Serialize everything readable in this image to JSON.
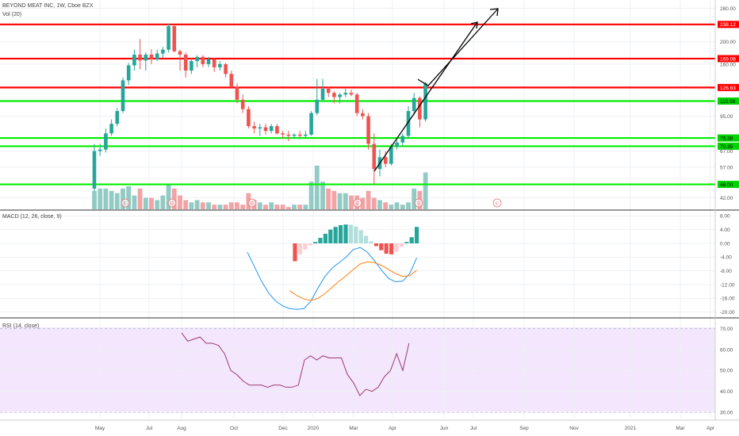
{
  "header": {
    "symbol_line": "BEYOND MEAT INC, 1W, Cboe BZX",
    "volume_label": "Vol (20)"
  },
  "colors": {
    "up": "#26a69a",
    "down": "#ef5350",
    "up_volume": "#92cbc4",
    "down_volume": "#f1a3a5",
    "resistance": "#ff0000",
    "support": "#00ee00",
    "macd_line": "#2196f3",
    "signal_line": "#ff7f0e",
    "rsi_line": "#9c3a74",
    "rsi_band": "#f3e6fd",
    "axis_text": "#555555"
  },
  "chart_data": [
    {
      "type": "candlestick",
      "title": "BEYOND MEAT INC, 1W, Cboe BZX",
      "x_ticks": [
        "May",
        "Jul",
        "Aug",
        "Oct",
        "Dec",
        "2020",
        "Mar",
        "Apr",
        "Jun",
        "Jul",
        "Sep",
        "Nov",
        "2021",
        "Mar",
        "Apr"
      ],
      "y_ticks": [
        280.0,
        238.12,
        200.0,
        169.08,
        160.0,
        126.63,
        110.56,
        95.0,
        76.38,
        70.35,
        67.0,
        57.0,
        48.0,
        42.0
      ],
      "y_scale": "log",
      "ylim": [
        38,
        290
      ],
      "candles": [
        {
          "o": 46,
          "h": 72,
          "l": 45,
          "c": 67
        },
        {
          "o": 67,
          "h": 72,
          "l": 64,
          "c": 68
        },
        {
          "o": 68,
          "h": 84,
          "l": 66,
          "c": 80
        },
        {
          "o": 80,
          "h": 92,
          "l": 78,
          "c": 88
        },
        {
          "o": 88,
          "h": 103,
          "l": 86,
          "c": 100
        },
        {
          "o": 100,
          "h": 140,
          "l": 98,
          "c": 136
        },
        {
          "o": 136,
          "h": 162,
          "l": 130,
          "c": 158
        },
        {
          "o": 158,
          "h": 185,
          "l": 150,
          "c": 176
        },
        {
          "o": 176,
          "h": 206,
          "l": 152,
          "c": 166
        },
        {
          "o": 166,
          "h": 180,
          "l": 150,
          "c": 176
        },
        {
          "o": 176,
          "h": 186,
          "l": 160,
          "c": 168
        },
        {
          "o": 168,
          "h": 185,
          "l": 165,
          "c": 178
        },
        {
          "o": 178,
          "h": 190,
          "l": 170,
          "c": 185
        },
        {
          "o": 185,
          "h": 240,
          "l": 180,
          "c": 234
        },
        {
          "o": 234,
          "h": 238,
          "l": 180,
          "c": 182
        },
        {
          "o": 182,
          "h": 185,
          "l": 150,
          "c": 176
        },
        {
          "o": 176,
          "h": 180,
          "l": 140,
          "c": 150
        },
        {
          "o": 150,
          "h": 170,
          "l": 145,
          "c": 165
        },
        {
          "o": 165,
          "h": 175,
          "l": 155,
          "c": 172
        },
        {
          "o": 172,
          "h": 175,
          "l": 155,
          "c": 160
        },
        {
          "o": 160,
          "h": 172,
          "l": 155,
          "c": 168
        },
        {
          "o": 168,
          "h": 170,
          "l": 148,
          "c": 155
        },
        {
          "o": 155,
          "h": 165,
          "l": 150,
          "c": 160
        },
        {
          "o": 160,
          "h": 162,
          "l": 140,
          "c": 145
        },
        {
          "o": 145,
          "h": 150,
          "l": 125,
          "c": 128
        },
        {
          "o": 128,
          "h": 132,
          "l": 108,
          "c": 112
        },
        {
          "o": 112,
          "h": 118,
          "l": 98,
          "c": 102
        },
        {
          "o": 102,
          "h": 105,
          "l": 84,
          "c": 86
        },
        {
          "o": 86,
          "h": 90,
          "l": 80,
          "c": 84
        },
        {
          "o": 84,
          "h": 88,
          "l": 78,
          "c": 85
        },
        {
          "o": 85,
          "h": 88,
          "l": 79,
          "c": 82
        },
        {
          "o": 82,
          "h": 88,
          "l": 80,
          "c": 86
        },
        {
          "o": 86,
          "h": 88,
          "l": 79,
          "c": 80
        },
        {
          "o": 80,
          "h": 82,
          "l": 76,
          "c": 79
        },
        {
          "o": 79,
          "h": 82,
          "l": 74,
          "c": 78
        },
        {
          "o": 78,
          "h": 80,
          "l": 76,
          "c": 79
        },
        {
          "o": 79,
          "h": 82,
          "l": 77,
          "c": 78
        },
        {
          "o": 78,
          "h": 82,
          "l": 77,
          "c": 79
        },
        {
          "o": 79,
          "h": 100,
          "l": 78,
          "c": 98
        },
        {
          "o": 98,
          "h": 138,
          "l": 96,
          "c": 112
        },
        {
          "o": 112,
          "h": 138,
          "l": 110,
          "c": 125
        },
        {
          "o": 125,
          "h": 128,
          "l": 115,
          "c": 120
        },
        {
          "o": 120,
          "h": 122,
          "l": 108,
          "c": 115
        },
        {
          "o": 115,
          "h": 120,
          "l": 108,
          "c": 118
        },
        {
          "o": 118,
          "h": 125,
          "l": 115,
          "c": 120
        },
        {
          "o": 120,
          "h": 124,
          "l": 116,
          "c": 118
        },
        {
          "o": 118,
          "h": 120,
          "l": 95,
          "c": 98
        },
        {
          "o": 98,
          "h": 102,
          "l": 92,
          "c": 95
        },
        {
          "o": 95,
          "h": 98,
          "l": 68,
          "c": 72
        },
        {
          "o": 72,
          "h": 80,
          "l": 48,
          "c": 56
        },
        {
          "o": 56,
          "h": 68,
          "l": 52,
          "c": 63
        },
        {
          "o": 63,
          "h": 67,
          "l": 57,
          "c": 59
        },
        {
          "o": 59,
          "h": 72,
          "l": 58,
          "c": 70
        },
        {
          "o": 70,
          "h": 75,
          "l": 68,
          "c": 73
        },
        {
          "o": 73,
          "h": 80,
          "l": 70,
          "c": 78
        },
        {
          "o": 78,
          "h": 105,
          "l": 76,
          "c": 100
        },
        {
          "o": 100,
          "h": 120,
          "l": 96,
          "c": 114
        },
        {
          "o": 114,
          "h": 116,
          "l": 85,
          "c": 92
        },
        {
          "o": 92,
          "h": 134,
          "l": 90,
          "c": 132
        }
      ],
      "volume": [
        8,
        9,
        9,
        8,
        7,
        9,
        10,
        6,
        9,
        5,
        5,
        4,
        6,
        11,
        9,
        6,
        4,
        3,
        4,
        3,
        3,
        2,
        2,
        2,
        3,
        3,
        2,
        7,
        4,
        3,
        2,
        3,
        2,
        2,
        1,
        2,
        2,
        2,
        12,
        19,
        12,
        9,
        8,
        7,
        7,
        6,
        6,
        5,
        8,
        5,
        4,
        3,
        2,
        3,
        2,
        3,
        9,
        8,
        16
      ],
      "resistance_levels": [
        238.12,
        169.08,
        126.63
      ],
      "support_levels": [
        110.56,
        76.38,
        70.35,
        48.0
      ],
      "earnings_markers": [
        "E",
        "E",
        "E",
        "E",
        "E",
        "E"
      ],
      "projection": {
        "from": 126.63,
        "to": 280.0
      }
    },
    {
      "type": "bar",
      "title": "MACD (12, 26, close, 9)",
      "y_ticks": [
        8.0,
        4.0,
        0.0,
        -4.0,
        -8.0,
        -12.0,
        -16.0,
        -20.0
      ],
      "ylim": [
        -21,
        9
      ],
      "histogram": [
        -5.2,
        -3.2,
        -1.8,
        -0.6,
        0.4,
        1.6,
        2.8,
        4.0,
        4.8,
        5.3,
        5.5,
        5.4,
        4.9,
        3.8,
        2.2,
        0.6,
        -0.8,
        -2.0,
        -3.0,
        -3.2,
        -2.4,
        -1.0,
        0.4,
        1.8,
        4.8
      ],
      "macd": [
        -2.6,
        -6.8,
        -11.0,
        -14.4,
        -16.8,
        -18.2,
        -19.0,
        -19.2,
        -19.0,
        -16.8,
        -13.0,
        -9.6,
        -7.2,
        -5.6,
        -4.0,
        -1.8,
        -1.2,
        -2.6,
        -5.0,
        -7.8,
        -10.2,
        -11.2,
        -11.0,
        -8.8,
        -4.2
      ],
      "signal": [
        null,
        null,
        null,
        null,
        null,
        null,
        -13.8,
        -15.2,
        -16.2,
        -16.6,
        -16.0,
        -14.6,
        -12.8,
        -11.0,
        -9.4,
        -7.6,
        -6.0,
        -5.4,
        -5.6,
        -6.4,
        -7.6,
        -8.8,
        -9.6,
        -9.4,
        -7.8
      ]
    },
    {
      "type": "line",
      "title": "RSI (14, close)",
      "y_ticks": [
        70.0,
        60.0,
        50.0,
        40.0,
        30.0
      ],
      "ylim": [
        27,
        74
      ],
      "band": [
        30,
        70
      ],
      "values": [
        68,
        64,
        65,
        66,
        63,
        63,
        62,
        58,
        50,
        48,
        45,
        43,
        43,
        43,
        42,
        43,
        43,
        42,
        42,
        43,
        55,
        57,
        55,
        57,
        56,
        56,
        56,
        48,
        44,
        38,
        41,
        40,
        42,
        47,
        50,
        58,
        50,
        63
      ]
    }
  ]
}
